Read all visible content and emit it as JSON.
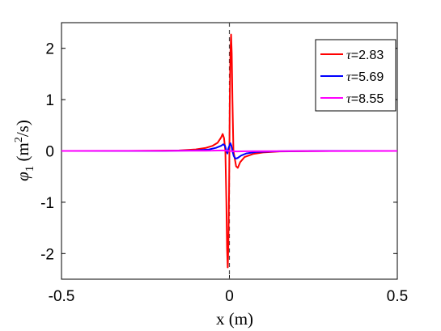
{
  "chart_data": {
    "type": "line",
    "xlabel": "x (m)",
    "ylabel": {
      "symbol": "φ",
      "subscript": "1",
      "unit_prefix": " (m",
      "unit_sup": "2",
      "unit_suffix": "/s)"
    },
    "xlim": [
      -0.5,
      0.5
    ],
    "ylim": [
      -2.5,
      2.5
    ],
    "x_ticks": [
      -0.5,
      0,
      0.5
    ],
    "x_tick_labels": [
      "-0.5",
      "0",
      "0.5"
    ],
    "y_ticks": [
      -2,
      -1,
      0,
      1,
      2
    ],
    "y_tick_labels": [
      "-2",
      "-1",
      "0",
      "1",
      "2"
    ],
    "grid": false,
    "legend_position": "top-right",
    "reference_line": {
      "x": 0,
      "style": "dashed",
      "color": "#444444"
    },
    "series": [
      {
        "name": "τ=2.83",
        "tau_symbol": "τ",
        "label_value": "=2.83",
        "color": "#ff0000",
        "points": [
          [
            -0.5,
            0
          ],
          [
            -0.3,
            0.0
          ],
          [
            -0.15,
            0.01
          ],
          [
            -0.1,
            0.03
          ],
          [
            -0.07,
            0.06
          ],
          [
            -0.05,
            0.1
          ],
          [
            -0.035,
            0.16
          ],
          [
            -0.025,
            0.26
          ],
          [
            -0.02,
            0.33
          ],
          [
            -0.016,
            0.25
          ],
          [
            -0.012,
            0.0
          ],
          [
            -0.009,
            -1.0
          ],
          [
            -0.007,
            -1.9
          ],
          [
            -0.005,
            -2.27
          ],
          [
            -0.003,
            -1.8
          ],
          [
            -0.001,
            -0.8
          ],
          [
            0.0,
            0.0
          ],
          [
            0.001,
            0.9
          ],
          [
            0.003,
            1.9
          ],
          [
            0.005,
            2.27
          ],
          [
            0.007,
            1.9
          ],
          [
            0.009,
            1.0
          ],
          [
            0.012,
            0.0
          ],
          [
            0.016,
            -0.15
          ],
          [
            0.02,
            -0.3
          ],
          [
            0.025,
            -0.33
          ],
          [
            0.032,
            -0.22
          ],
          [
            0.045,
            -0.12
          ],
          [
            0.07,
            -0.06
          ],
          [
            0.1,
            -0.03
          ],
          [
            0.15,
            -0.01
          ],
          [
            0.3,
            0.0
          ],
          [
            0.5,
            0
          ]
        ]
      },
      {
        "name": "τ=5.69",
        "tau_symbol": "τ",
        "label_value": "=5.69",
        "color": "#0000ff",
        "points": [
          [
            -0.5,
            0
          ],
          [
            -0.2,
            0.0
          ],
          [
            -0.1,
            0.01
          ],
          [
            -0.06,
            0.03
          ],
          [
            -0.04,
            0.06
          ],
          [
            -0.025,
            0.1
          ],
          [
            -0.018,
            0.13
          ],
          [
            -0.013,
            0.1
          ],
          [
            -0.009,
            0.0
          ],
          [
            -0.006,
            -0.05
          ],
          [
            -0.003,
            0.05
          ],
          [
            0.0,
            0.1
          ],
          [
            0.003,
            0.15
          ],
          [
            0.006,
            0.1
          ],
          [
            0.009,
            0.0
          ],
          [
            0.013,
            -0.1
          ],
          [
            0.018,
            -0.15
          ],
          [
            0.024,
            -0.14
          ],
          [
            0.035,
            -0.09
          ],
          [
            0.05,
            -0.05
          ],
          [
            0.08,
            -0.02
          ],
          [
            0.15,
            -0.005
          ],
          [
            0.3,
            0.0
          ],
          [
            0.5,
            0
          ]
        ]
      },
      {
        "name": "τ=8.55",
        "tau_symbol": "τ",
        "label_value": "=8.55",
        "color": "#ff00ff",
        "points": [
          [
            -0.5,
            0
          ],
          [
            -0.05,
            0.005
          ],
          [
            -0.02,
            0.01
          ],
          [
            0.0,
            0.0
          ],
          [
            0.02,
            -0.01
          ],
          [
            0.05,
            -0.005
          ],
          [
            0.5,
            0
          ]
        ]
      }
    ]
  }
}
